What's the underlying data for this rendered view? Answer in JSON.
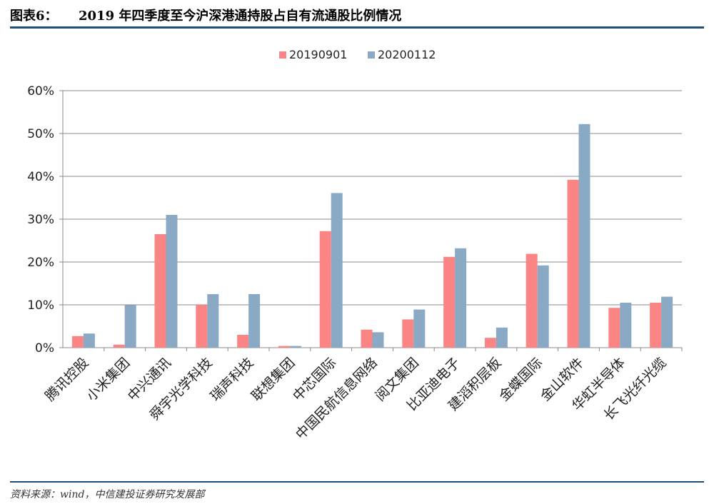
{
  "header": {
    "label": "图表6：",
    "title": "2019 年四季度至今沪深港通持股占自有流通股比例情况"
  },
  "source": "资料来源：wind，中信建投证券研究发展部",
  "colors": {
    "series1": "#fb8585",
    "series2": "#8aa9c4",
    "grid": "#888888",
    "axis": "#888888"
  },
  "chart_data": {
    "type": "bar",
    "categories": [
      "腾讯控股",
      "小米集团",
      "中兴通讯",
      "舜宇光学科技",
      "瑞声科技",
      "联想集团",
      "中芯国际",
      "中国民航信息网络",
      "阅文集团",
      "比亚迪电子",
      "建滔积层板",
      "金蝶国际",
      "金山软件",
      "华虹半导体",
      "长飞光纤光缆"
    ],
    "series": [
      {
        "name": "20190901",
        "values": [
          2.7,
          0.7,
          26.5,
          10.0,
          3.0,
          0.4,
          27.2,
          4.2,
          6.6,
          21.2,
          2.3,
          21.9,
          39.2,
          9.3,
          10.5
        ]
      },
      {
        "name": "20200112",
        "values": [
          3.3,
          9.9,
          31.0,
          12.5,
          12.5,
          0.4,
          36.1,
          3.6,
          8.9,
          23.2,
          4.7,
          19.2,
          52.2,
          10.5,
          11.9
        ]
      }
    ],
    "ylim": [
      0,
      60
    ],
    "yticks": [
      "0%",
      "10%",
      "20%",
      "30%",
      "40%",
      "50%",
      "60%"
    ],
    "grid": true,
    "legend": "top-center"
  }
}
